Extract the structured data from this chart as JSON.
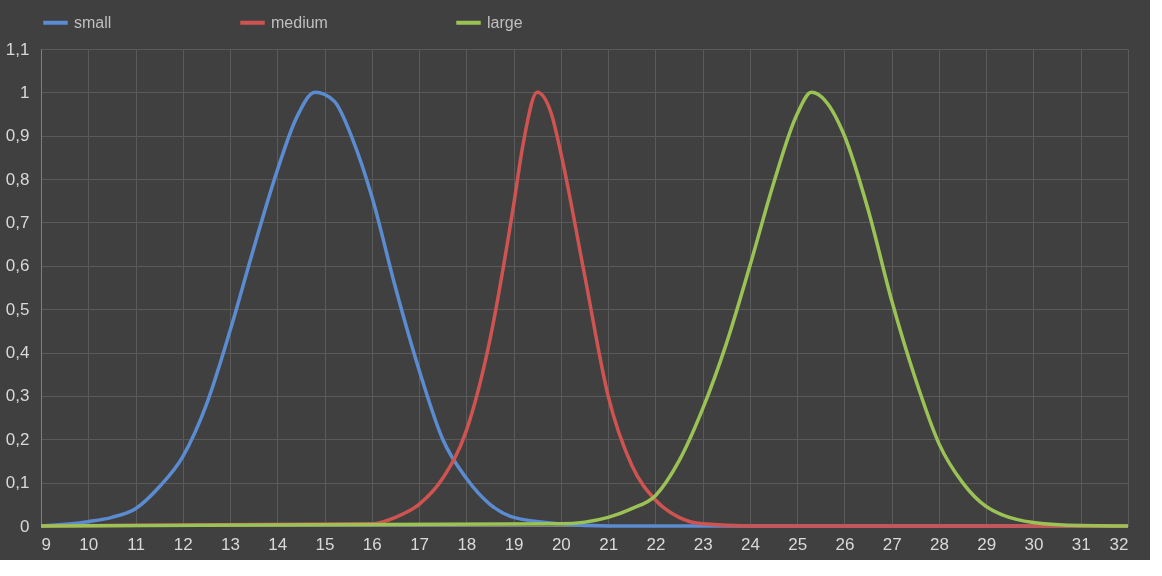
{
  "chart_data": {
    "type": "line",
    "xlim": [
      9,
      32
    ],
    "xticks": [
      9,
      10,
      11,
      12,
      13,
      14,
      15,
      16,
      17,
      18,
      19,
      20,
      21,
      22,
      23,
      24,
      25,
      26,
      27,
      28,
      29,
      30,
      31,
      32
    ],
    "ylim": [
      0,
      1.1
    ],
    "yticks": [
      0,
      {
        "value": 0.1,
        "label": "0,1"
      },
      {
        "value": 0.2,
        "label": "0,2"
      },
      {
        "value": 0.3,
        "label": "0,3"
      },
      {
        "value": 0.4,
        "label": "0,4"
      },
      {
        "value": 0.5,
        "label": "0,5"
      },
      {
        "value": 0.6,
        "label": "0,6"
      },
      {
        "value": 0.7,
        "label": "0,7"
      },
      {
        "value": 0.8,
        "label": "0,8"
      },
      {
        "value": 0.9,
        "label": "0,9"
      },
      1,
      {
        "value": 1.1,
        "label": "1,1"
      }
    ],
    "grid": true,
    "legend": "top",
    "marker": "none",
    "line_style": "solid",
    "series": [
      {
        "name": "small",
        "color": "#5b8bd0",
        "x": [
          9,
          10,
          10.5,
          11,
          11.5,
          12,
          12.5,
          13,
          13.5,
          14,
          14.4,
          14.8,
          15.2,
          15.6,
          16,
          16.5,
          17,
          17.5,
          18,
          18.5,
          19,
          20,
          21,
          32
        ],
        "values": [
          0,
          0.01,
          0.02,
          0.04,
          0.09,
          0.16,
          0.28,
          0.45,
          0.64,
          0.82,
          0.94,
          1,
          0.98,
          0.89,
          0.76,
          0.55,
          0.36,
          0.2,
          0.11,
          0.05,
          0.02,
          0.005,
          0,
          0
        ]
      },
      {
        "name": "medium",
        "color": "#cf5350",
        "x": [
          9,
          16,
          16.5,
          17,
          17.5,
          18,
          18.5,
          19,
          19.2,
          19.5,
          19.8,
          20,
          20.5,
          21,
          21.5,
          22,
          22.5,
          23,
          24,
          32
        ],
        "values": [
          0,
          0.005,
          0.02,
          0.05,
          0.11,
          0.22,
          0.43,
          0.74,
          0.88,
          1,
          0.95,
          0.86,
          0.58,
          0.3,
          0.14,
          0.06,
          0.02,
          0.005,
          0,
          0
        ]
      },
      {
        "name": "large",
        "color": "#9bc255",
        "x": [
          9,
          20,
          21,
          21.5,
          22,
          22.5,
          23,
          23.5,
          24,
          24.5,
          25,
          25.3,
          25.6,
          26,
          26.5,
          27,
          27.5,
          28,
          28.5,
          29,
          30,
          31,
          32
        ],
        "values": [
          0,
          0.005,
          0.02,
          0.04,
          0.07,
          0.15,
          0.27,
          0.42,
          0.6,
          0.79,
          0.95,
          1,
          0.98,
          0.9,
          0.73,
          0.52,
          0.34,
          0.19,
          0.1,
          0.045,
          0.008,
          0.001,
          0
        ]
      }
    ]
  }
}
